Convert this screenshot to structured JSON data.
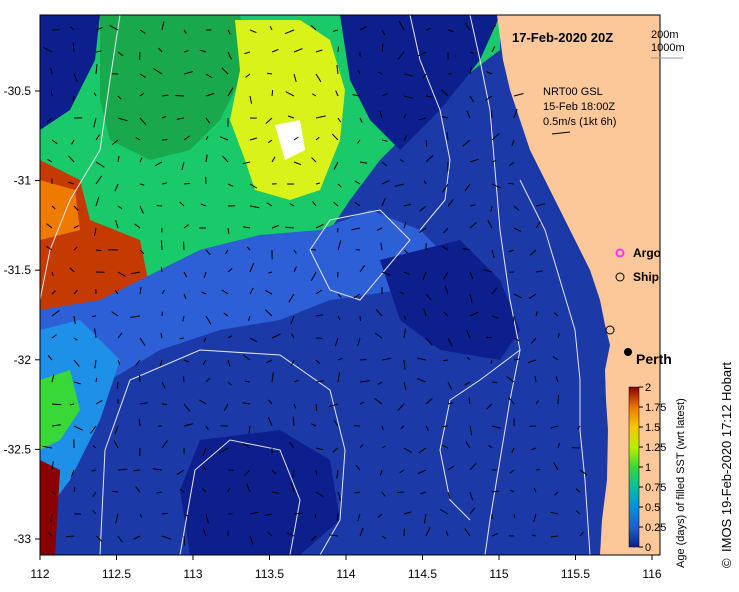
{
  "title": "17-Feb-2020 20Z",
  "depth_legend": {
    "a": "200m",
    "b": "1000m"
  },
  "current_info": {
    "line1": "NRT00 GSL",
    "line2": "15-Feb 18:00Z",
    "line3": "0.5m/s (1kt 6h)"
  },
  "legend": {
    "argo": "Argo",
    "ship": "Ship",
    "argo_color": "#ff33ff"
  },
  "city": "Perth",
  "colorbar": {
    "label": "Age (days) of filled SST (wrt latest)",
    "ticks": [
      "2",
      "1.75",
      "1.5",
      "1.25",
      "1",
      "0.75",
      "0.5",
      "0.25",
      "0"
    ],
    "colors": [
      "#8b0000",
      "#c43a00",
      "#ee7a00",
      "#f5c800",
      "#b5f000",
      "#38d838",
      "#00c0a0",
      "#0090e0",
      "#1f5fcf",
      "#0a1f8a"
    ]
  },
  "axes": {
    "x_ticks": [
      "112",
      "112.5",
      "113",
      "113.5",
      "114",
      "114.5",
      "115",
      "115.5",
      "116"
    ],
    "y_ticks": [
      "-30.5",
      "-31",
      "-31.5",
      "-32",
      "-32.5",
      "-33"
    ]
  },
  "credit": "IMOS 19-Feb-2020 17:12 Hobart",
  "copyright": "©",
  "colors": {
    "land": "#fcc89a",
    "deep": "#0c1f8c",
    "navy": "#1b3aa8",
    "mid": "#2d5fd6",
    "light": "#1e90e8",
    "green": "#19c96a",
    "yellowgreen": "#d8f21a"
  }
}
